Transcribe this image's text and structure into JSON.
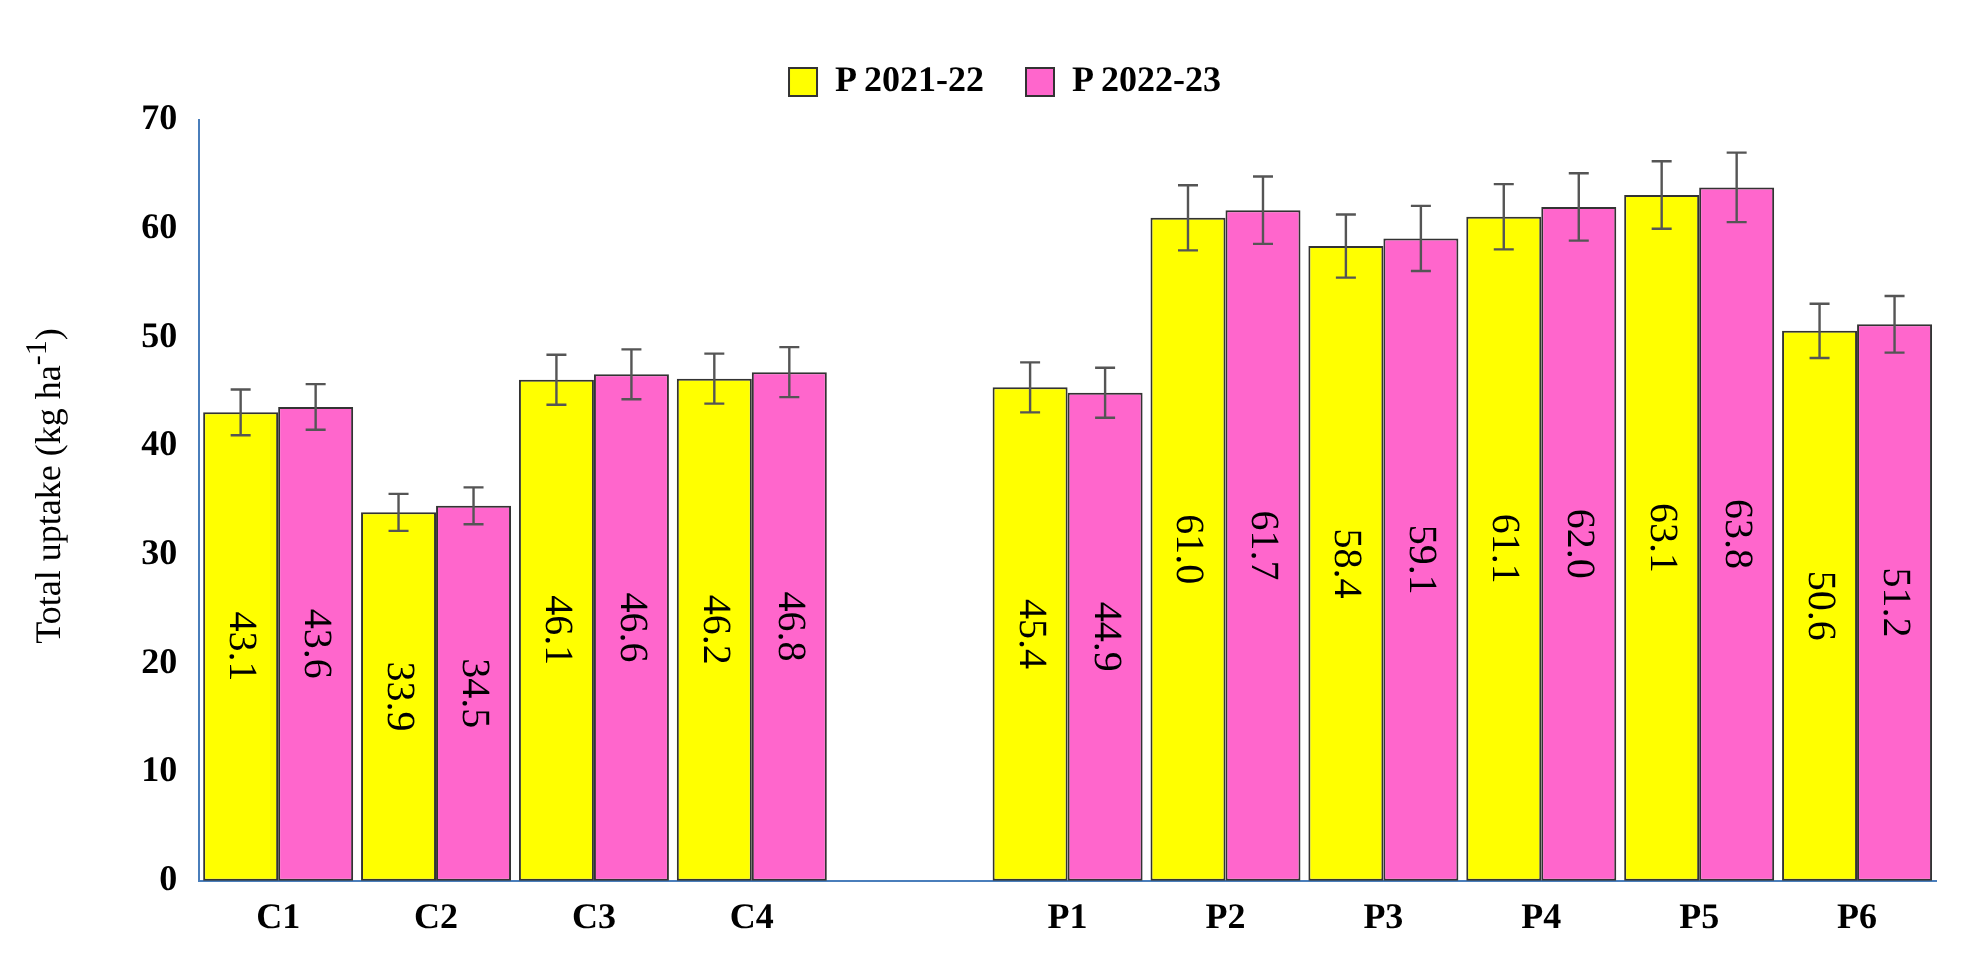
{
  "chart_data": {
    "type": "bar",
    "ylabel": "Total uptake  (kg ha$^{-1}$)",
    "categories": [
      "C1",
      "C2",
      "C3",
      "C4",
      null,
      "P1",
      "P2",
      "P3",
      "P4",
      "P5",
      "P6"
    ],
    "series": [
      {
        "name": "P 2021-22",
        "color": "#ffff00",
        "values": [
          43.1,
          33.9,
          46.1,
          46.2,
          null,
          45.4,
          61.0,
          58.4,
          61.1,
          63.1,
          50.6
        ],
        "errors": [
          2.1,
          1.7,
          2.3,
          2.3,
          null,
          2.3,
          3.0,
          2.9,
          3.0,
          3.1,
          2.5
        ],
        "value_labels": [
          "43.1",
          "33.9",
          "46.1",
          "46.2",
          null,
          "45.4",
          "61.0",
          "58.4",
          "61.1",
          "63.1",
          "50.6"
        ]
      },
      {
        "name": "P 2022-23",
        "color": "#ff66cc",
        "values": [
          43.6,
          34.5,
          46.6,
          46.8,
          null,
          44.9,
          61.7,
          59.1,
          62.0,
          63.8,
          51.2
        ],
        "errors": [
          2.1,
          1.7,
          2.3,
          2.3,
          null,
          2.3,
          3.1,
          3.0,
          3.1,
          3.2,
          2.6
        ],
        "value_labels": [
          "43.6",
          "34.5",
          "46.6",
          "46.8",
          null,
          "44.9",
          "61.7",
          "59.1",
          "62.0",
          "63.8",
          "51.2"
        ]
      }
    ],
    "ylim": [
      0,
      70
    ],
    "yticks": [
      0,
      10,
      20,
      30,
      40,
      50,
      60,
      70
    ],
    "grid": false,
    "legend": "top"
  }
}
